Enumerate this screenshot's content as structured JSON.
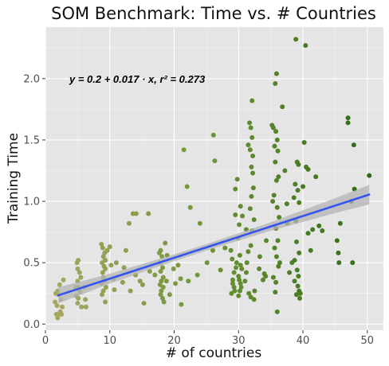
{
  "chart_data": {
    "type": "scatter",
    "title": "SOM Benchmark: Time vs. # Countries",
    "xlabel": "# of countries",
    "ylabel": "Training Time",
    "xlim": [
      0,
      52.5
    ],
    "ylim": [
      -0.05,
      2.42
    ],
    "x_ticks": [
      0,
      10,
      20,
      30,
      40,
      50
    ],
    "y_ticks": [
      0.0,
      0.5,
      1.0,
      1.5,
      2.0
    ],
    "x_tick_labels": [
      "0",
      "10",
      "20",
      "30",
      "40",
      "50"
    ],
    "y_tick_labels": [
      "0.0",
      "0.5",
      "1.0",
      "1.5",
      "2.0"
    ],
    "grid": true,
    "panel_background": "#e5e5e5",
    "fit_line": {
      "intercept": 0.2,
      "slope": 0.017,
      "color": "#3355ee",
      "x_range": [
        2,
        50.3
      ]
    },
    "confidence_band": {
      "color": "#b3b3b3",
      "half_width_at_x": [
        [
          2,
          0.065
        ],
        [
          10,
          0.04
        ],
        [
          20,
          0.028
        ],
        [
          25,
          0.026
        ],
        [
          35,
          0.035
        ],
        [
          45,
          0.06
        ],
        [
          50.3,
          0.08
        ]
      ]
    },
    "annotation": "y = 0.2 + 0.017 · x,  r² = 0.273",
    "color_scale": {
      "low": "#a8a860",
      "mid": "#6e9436",
      "high": "#2f6b17",
      "domain": [
        1,
        50
      ]
    },
    "points": [
      [
        1.6,
        0.25
      ],
      [
        1.9,
        0.27
      ],
      [
        2.0,
        0.24
      ],
      [
        1.8,
        0.15
      ],
      [
        1.7,
        0.08
      ],
      [
        2.1,
        0.08
      ],
      [
        2.3,
        0.1
      ],
      [
        2.5,
        0.08
      ],
      [
        1.9,
        0.05
      ],
      [
        2.2,
        0.32
      ],
      [
        2.4,
        0.2
      ],
      [
        2.6,
        0.14
      ],
      [
        1.5,
        0.18
      ],
      [
        2.8,
        0.36
      ],
      [
        4.9,
        0.5
      ],
      [
        5.1,
        0.52
      ],
      [
        5.0,
        0.45
      ],
      [
        5.3,
        0.42
      ],
      [
        5.0,
        0.35
      ],
      [
        5.2,
        0.3
      ],
      [
        5.4,
        0.26
      ],
      [
        4.8,
        0.23
      ],
      [
        5.0,
        0.17
      ],
      [
        5.6,
        0.14
      ],
      [
        5.2,
        0.28
      ],
      [
        5.5,
        0.38
      ],
      [
        6.2,
        0.2
      ],
      [
        6.0,
        0.3
      ],
      [
        6.3,
        0.14
      ],
      [
        5.1,
        0.21
      ],
      [
        4.7,
        0.3
      ],
      [
        8.7,
        0.65
      ],
      [
        8.9,
        0.62
      ],
      [
        9.2,
        0.58
      ],
      [
        9.0,
        0.55
      ],
      [
        9.3,
        0.52
      ],
      [
        8.8,
        0.5
      ],
      [
        9.1,
        0.47
      ],
      [
        9.3,
        0.45
      ],
      [
        8.9,
        0.42
      ],
      [
        9.0,
        0.38
      ],
      [
        9.2,
        0.35
      ],
      [
        8.7,
        0.33
      ],
      [
        9.4,
        0.3
      ],
      [
        9.0,
        0.27
      ],
      [
        8.8,
        0.24
      ],
      [
        9.6,
        0.6
      ],
      [
        10.0,
        0.63
      ],
      [
        10.2,
        0.48
      ],
      [
        11.0,
        0.5
      ],
      [
        10.7,
        0.28
      ],
      [
        9.3,
        0.18
      ],
      [
        10.5,
        0.37
      ],
      [
        12.0,
        0.34
      ],
      [
        12.2,
        0.46
      ],
      [
        12.5,
        0.6
      ],
      [
        13.0,
        0.82
      ],
      [
        13.6,
        0.9
      ],
      [
        14.1,
        0.9
      ],
      [
        13.2,
        0.27
      ],
      [
        14.0,
        0.4
      ],
      [
        14.7,
        0.35
      ],
      [
        15.1,
        0.32
      ],
      [
        15.3,
        0.17
      ],
      [
        16.0,
        0.9
      ],
      [
        16.2,
        0.43
      ],
      [
        17.0,
        0.4
      ],
      [
        17.7,
        0.58
      ],
      [
        17.9,
        0.6
      ],
      [
        18.1,
        0.55
      ],
      [
        17.8,
        0.5
      ],
      [
        18.2,
        0.46
      ],
      [
        17.9,
        0.43
      ],
      [
        18.3,
        0.38
      ],
      [
        18.0,
        0.35
      ],
      [
        17.8,
        0.32
      ],
      [
        18.3,
        0.3
      ],
      [
        18.0,
        0.27
      ],
      [
        17.9,
        0.24
      ],
      [
        18.2,
        0.21
      ],
      [
        18.4,
        0.18
      ],
      [
        18.9,
        0.56
      ],
      [
        18.8,
        0.35
      ],
      [
        19.3,
        0.24
      ],
      [
        18.6,
        0.66
      ],
      [
        19.9,
        0.45
      ],
      [
        20.2,
        0.33
      ],
      [
        20.6,
        0.48
      ],
      [
        21.0,
        0.37
      ],
      [
        21.1,
        0.16
      ],
      [
        21.5,
        1.42
      ],
      [
        22.0,
        1.12
      ],
      [
        22.5,
        0.95
      ],
      [
        22.2,
        0.35
      ],
      [
        23.6,
        0.4
      ],
      [
        24.0,
        0.82
      ],
      [
        25.1,
        0.5
      ],
      [
        26.0,
        0.6
      ],
      [
        26.1,
        1.54
      ],
      [
        26.3,
        1.33
      ],
      [
        27.2,
        0.44
      ],
      [
        27.9,
        0.62
      ],
      [
        28.8,
        0.6
      ],
      [
        29.1,
        0.33
      ],
      [
        29.3,
        0.3
      ],
      [
        29.4,
        0.27
      ],
      [
        28.9,
        0.25
      ],
      [
        29.1,
        0.36
      ],
      [
        29.3,
        0.42
      ],
      [
        29.6,
        0.46
      ],
      [
        29.5,
        1.1
      ],
      [
        29.8,
        1.18
      ],
      [
        29.5,
        0.89
      ],
      [
        29.7,
        0.5
      ],
      [
        29.0,
        0.53
      ],
      [
        30.0,
        0.39
      ],
      [
        30.1,
        0.36
      ],
      [
        30.3,
        0.33
      ],
      [
        30.4,
        0.3
      ],
      [
        30.2,
        0.27
      ],
      [
        30.0,
        0.23
      ],
      [
        30.5,
        0.45
      ],
      [
        30.3,
        0.48
      ],
      [
        30.2,
        0.56
      ],
      [
        29.9,
        0.7
      ],
      [
        30.1,
        0.81
      ],
      [
        30.3,
        0.96
      ],
      [
        30.6,
        0.88
      ],
      [
        31.0,
        0.35
      ],
      [
        31.2,
        0.42
      ],
      [
        31.3,
        0.5
      ],
      [
        31.5,
        0.59
      ],
      [
        31.7,
        1.64
      ],
      [
        31.9,
        1.6
      ],
      [
        32.1,
        1.52
      ],
      [
        31.5,
        1.46
      ],
      [
        31.8,
        1.42
      ],
      [
        32.2,
        1.37
      ],
      [
        32.0,
        1.28
      ],
      [
        32.2,
        1.23
      ],
      [
        32.3,
        1.11
      ],
      [
        32.0,
        1.04
      ],
      [
        31.8,
        0.94
      ],
      [
        32.4,
        0.85
      ],
      [
        32.1,
        0.76
      ],
      [
        31.9,
        0.64
      ],
      [
        31.6,
        0.25
      ],
      [
        31.9,
        0.22
      ],
      [
        32.4,
        0.2
      ],
      [
        32.1,
        1.82
      ],
      [
        31.2,
        0.77
      ],
      [
        32.5,
        0.27
      ],
      [
        33.2,
        0.45
      ],
      [
        33.3,
        0.55
      ],
      [
        33.8,
        0.36
      ],
      [
        34.2,
        0.39
      ],
      [
        34.0,
        0.41
      ],
      [
        34.3,
        0.68
      ],
      [
        35.2,
        1.62
      ],
      [
        35.4,
        1.6
      ],
      [
        35.8,
        1.57
      ],
      [
        36.0,
        1.5
      ],
      [
        35.6,
        1.45
      ],
      [
        36.1,
        1.41
      ],
      [
        35.7,
        1.32
      ],
      [
        36.2,
        1.2
      ],
      [
        35.9,
        1.17
      ],
      [
        35.5,
        1.05
      ],
      [
        36.0,
        0.95
      ],
      [
        36.3,
        0.87
      ],
      [
        35.8,
        0.78
      ],
      [
        36.1,
        0.68
      ],
      [
        35.6,
        0.62
      ],
      [
        35.9,
        0.55
      ],
      [
        36.2,
        0.47
      ],
      [
        35.4,
        0.38
      ],
      [
        35.8,
        0.34
      ],
      [
        36.0,
        0.1
      ],
      [
        35.7,
        1.96
      ],
      [
        35.9,
        2.04
      ],
      [
        35.3,
        1.0
      ],
      [
        36.4,
        0.5
      ],
      [
        35.7,
        0.26
      ],
      [
        36.8,
        1.77
      ],
      [
        37.2,
        1.25
      ],
      [
        37.5,
        0.98
      ],
      [
        37.6,
        0.82
      ],
      [
        38.3,
        0.5
      ],
      [
        37.9,
        0.42
      ],
      [
        38.9,
        2.32
      ],
      [
        39.1,
        1.32
      ],
      [
        39.3,
        1.3
      ],
      [
        38.8,
        1.14
      ],
      [
        39.2,
        1.09
      ],
      [
        38.6,
        1.03
      ],
      [
        39.4,
        0.99
      ],
      [
        38.9,
        0.84
      ],
      [
        39.0,
        0.67
      ],
      [
        39.4,
        0.58
      ],
      [
        38.7,
        0.52
      ],
      [
        39.1,
        0.44
      ],
      [
        39.3,
        0.39
      ],
      [
        38.7,
        0.35
      ],
      [
        39.2,
        0.31
      ],
      [
        39.4,
        0.27
      ],
      [
        39.0,
        0.24
      ],
      [
        39.5,
        0.21
      ],
      [
        39.6,
        0.25
      ],
      [
        40.0,
        1.12
      ],
      [
        40.5,
        1.28
      ],
      [
        40.8,
        1.26
      ],
      [
        40.4,
        2.27
      ],
      [
        40.2,
        1.48
      ],
      [
        40.8,
        0.74
      ],
      [
        41.2,
        0.6
      ],
      [
        41.5,
        0.77
      ],
      [
        42.0,
        1.2
      ],
      [
        42.5,
        0.8
      ],
      [
        43.0,
        0.76
      ],
      [
        45.3,
        0.68
      ],
      [
        45.5,
        0.58
      ],
      [
        45.6,
        0.5
      ],
      [
        45.8,
        0.82
      ],
      [
        47.0,
        1.64
      ],
      [
        47.0,
        1.68
      ],
      [
        47.5,
        1.0
      ],
      [
        47.7,
        0.5
      ],
      [
        47.9,
        1.46
      ],
      [
        48.0,
        1.1
      ],
      [
        50.3,
        1.21
      ]
    ]
  }
}
